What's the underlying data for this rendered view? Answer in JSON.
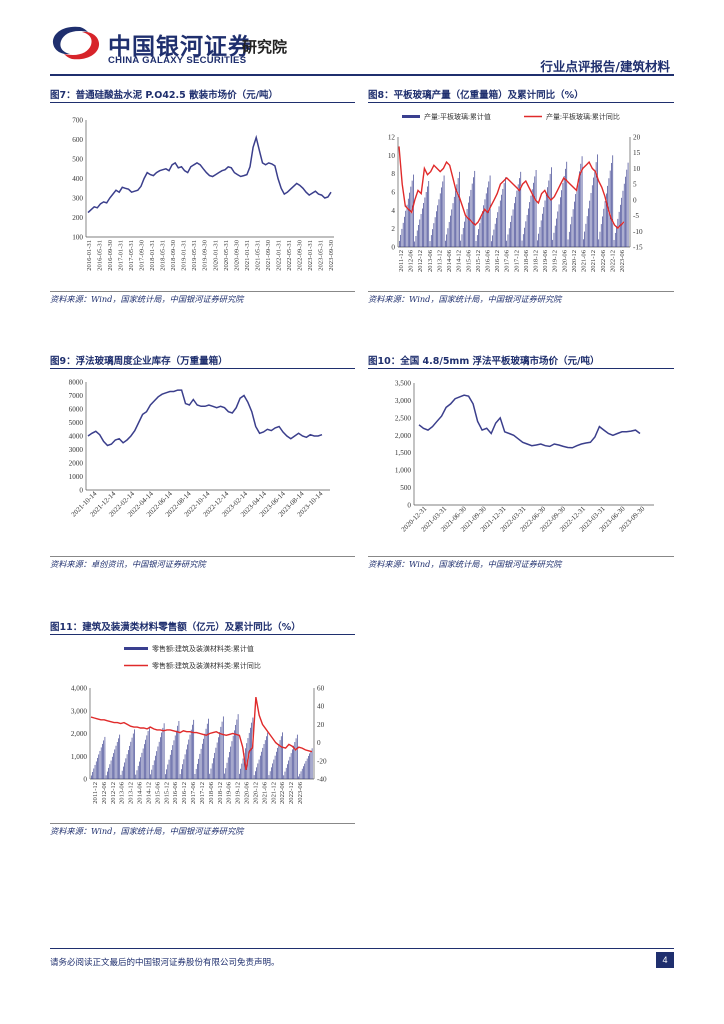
{
  "header": {
    "logo_cn": "中国银河证券",
    "logo_en": "CHINA GALAXY SECURITIES",
    "institute": "研究院",
    "report_type": "行业点评报告/建筑材料"
  },
  "figures": [
    {
      "id": "fig7",
      "title": "图7：普通硅酸盐水泥 P.O42.5 散装市场价（元/吨）",
      "source": "资料来源：Wind，国家统计局，中国银河证券研究院"
    },
    {
      "id": "fig8",
      "title": "图8：平板玻璃产量（亿重量箱）及累计同比（%）",
      "source": "资料来源：Wind，国家统计局，中国银河证券研究院"
    },
    {
      "id": "fig9",
      "title": "图9：浮法玻璃周度企业库存（万重量箱）",
      "source": "资料来源：卓创资讯，中国银河证券研究院"
    },
    {
      "id": "fig10",
      "title": "图10：全国 4.8/5mm 浮法平板玻璃市场价（元/吨）",
      "source": "资料来源：Wind，国家统计局，中国银河证券研究院"
    },
    {
      "id": "fig11",
      "title": "图11：建筑及装潢类材料零售额（亿元）及累计同比（%）",
      "source": "资料来源：Wind，国家统计局，中国银河证券研究院"
    }
  ],
  "footer": {
    "disclaimer": "请务必阅读正文最后的中国银河证券股份有限公司免责声明。",
    "page": "4"
  },
  "colors": {
    "navy": "#1f2f6e",
    "bar": "#3a3f8f",
    "red": "#e02a2a",
    "line": "#3b3f8c"
  },
  "chart_data": [
    {
      "id": "fig7",
      "type": "line",
      "title": "普通硅酸盐水泥 P.O42.5 散装市场价（元/吨）",
      "ylim": [
        100,
        700
      ],
      "yticks": [
        "100",
        "200",
        "300",
        "400",
        "500",
        "600",
        "700"
      ],
      "x_tick_labels": [
        "2016-01-31",
        "2016-05-31",
        "2016-09-30",
        "2017-01-31",
        "2017-05-31",
        "2017-09-30",
        "2018-01-31",
        "2018-05-31",
        "2018-09-30",
        "2019-01-31",
        "2019-05-31",
        "2019-09-30",
        "2020-01-31",
        "2020-05-31",
        "2020-09-30",
        "2021-01-31",
        "2021-05-31",
        "2021-09-30",
        "2022-01-31",
        "2022-05-31",
        "2022-09-30",
        "2023-01-31",
        "2023-05-31",
        "2023-09-30"
      ],
      "series": [
        {
          "name": "P.O42.5 散装价",
          "values": [
            225,
            240,
            255,
            250,
            270,
            280,
            275,
            300,
            320,
            340,
            330,
            355,
            350,
            345,
            330,
            335,
            340,
            360,
            400,
            430,
            420,
            415,
            430,
            440,
            445,
            450,
            440,
            470,
            480,
            455,
            460,
            440,
            430,
            460,
            470,
            480,
            470,
            450,
            430,
            415,
            410,
            420,
            430,
            440,
            445,
            460,
            455,
            430,
            420,
            410,
            415,
            420,
            460,
            560,
            610,
            545,
            480,
            470,
            480,
            475,
            465,
            400,
            350,
            320,
            330,
            345,
            360,
            375,
            365,
            350,
            330,
            315,
            325,
            335,
            320,
            315,
            300,
            305,
            330
          ]
        }
      ]
    },
    {
      "id": "fig8",
      "type": "bar+line",
      "title": "平板玻璃产量（亿重量箱）及累计同比（%）",
      "ylim_left": [
        0,
        12
      ],
      "ylim_right": [
        -15,
        20
      ],
      "yticks_left": [
        "0",
        "2",
        "4",
        "6",
        "8",
        "10",
        "12"
      ],
      "yticks_right": [
        "-15",
        "-10",
        "-5",
        "0",
        "5",
        "10",
        "15",
        "20"
      ],
      "x_tick_labels": [
        "2011-12",
        "2012-06",
        "2012-12",
        "2013-06",
        "2013-12",
        "2014-06",
        "2014-12",
        "2015-06",
        "2015-12",
        "2016-06",
        "2016-12",
        "2017-06",
        "2017-12",
        "2018-06",
        "2018-12",
        "2019-06",
        "2019-12",
        "2020-06",
        "2020-12",
        "2021-06",
        "2021-12",
        "2022-06",
        "2022-12",
        "2023-06"
      ],
      "legend": [
        "产量:平板玻璃:累计值",
        "产量:平板玻璃:累计同比"
      ],
      "bar_year_totals": [
        7.9,
        7.2,
        7.8,
        8.2,
        8.3,
        7.8,
        7.6,
        8.2,
        8.4,
        8.7,
        9.3,
        9.9,
        10.1,
        10.0,
        9.2
      ],
      "series": [
        {
          "name": "产量:平板玻璃:累计同比",
          "values": [
            17,
            5,
            -2,
            -3,
            -4,
            0,
            3,
            2,
            10,
            8,
            9,
            11,
            10,
            9,
            10,
            12,
            11,
            7,
            3,
            1,
            -2,
            -5,
            -6,
            -7,
            -8,
            -7,
            -5,
            -3,
            -4,
            -2,
            0,
            2,
            5,
            6,
            7,
            6,
            5,
            4,
            3,
            5,
            6,
            4,
            2,
            0,
            -1,
            2,
            3,
            1,
            0,
            1,
            3,
            5,
            7,
            6,
            5,
            4,
            3,
            8,
            10,
            11,
            12,
            10,
            9,
            6,
            4,
            1,
            -3,
            -6,
            -8,
            -9,
            -8,
            -7
          ]
        }
      ]
    },
    {
      "id": "fig9",
      "type": "line",
      "title": "浮法玻璃周度企业库存（万重量箱）",
      "ylim": [
        0,
        8000
      ],
      "yticks": [
        "0",
        "1000",
        "2000",
        "3000",
        "4000",
        "5000",
        "6000",
        "7000",
        "8000"
      ],
      "x_tick_labels": [
        "2021-10-14",
        "2021-12-14",
        "2022-02-14",
        "2022-04-14",
        "2022-06-14",
        "2022-08-14",
        "2022-10-14",
        "2022-12-14",
        "2023-02-14",
        "2023-04-14",
        "2023-06-14",
        "2023-08-14",
        "2023-10-14"
      ],
      "series": [
        {
          "name": "浮法玻璃周度企业库存",
          "values": [
            4000,
            4200,
            4350,
            4100,
            3600,
            3300,
            3400,
            3700,
            3800,
            3500,
            3700,
            4000,
            4400,
            5000,
            5600,
            5800,
            6300,
            6600,
            6900,
            7100,
            7200,
            7300,
            7300,
            7400,
            7400,
            6400,
            6300,
            6700,
            6300,
            6200,
            6200,
            6300,
            6200,
            6100,
            6200,
            6100,
            5800,
            5700,
            6100,
            6800,
            7000,
            6500,
            5800,
            4700,
            4200,
            4300,
            4500,
            4400,
            4600,
            4700,
            4300,
            4000,
            3800,
            4000,
            4200,
            4000,
            3900,
            4100,
            4000,
            4000,
            4100
          ]
        }
      ]
    },
    {
      "id": "fig10",
      "type": "line",
      "title": "全国 4.8/5mm 浮法平板玻璃市场价（元/吨）",
      "ylim": [
        0,
        3500
      ],
      "yticks": [
        "0",
        "500",
        "1,000",
        "1,500",
        "2,000",
        "2,500",
        "3,000",
        "3,500"
      ],
      "x_tick_labels": [
        "2020-12-31",
        "2021-03-31",
        "2021-06-30",
        "2021-09-30",
        "2021-12-31",
        "2022-03-31",
        "2022-06-30",
        "2022-09-30",
        "2022-12-31",
        "2023-03-31",
        "2023-06-30",
        "2023-09-30"
      ],
      "series": [
        {
          "name": "浮法平板玻璃市场价",
          "values": [
            2300,
            2200,
            2150,
            2250,
            2400,
            2550,
            2800,
            2900,
            3050,
            3100,
            3150,
            3120,
            2900,
            2400,
            2150,
            2200,
            2050,
            2350,
            2500,
            2100,
            2050,
            2000,
            1900,
            1800,
            1750,
            1700,
            1720,
            1750,
            1700,
            1680,
            1750,
            1720,
            1680,
            1650,
            1640,
            1700,
            1750,
            1780,
            1800,
            1950,
            2250,
            2150,
            2050,
            2000,
            2050,
            2100,
            2100,
            2120,
            2150,
            2050
          ]
        }
      ]
    },
    {
      "id": "fig11",
      "type": "bar+line",
      "title": "建筑及装潢类材料零售额（亿元）及累计同比（%）",
      "ylim_left": [
        0,
        4000
      ],
      "ylim_right": [
        -40,
        60
      ],
      "yticks_left": [
        "0",
        "1,000",
        "2,000",
        "3,000",
        "4,000"
      ],
      "yticks_right": [
        "-40",
        "-20",
        "0",
        "20",
        "40",
        "60"
      ],
      "x_tick_labels": [
        "2011-12",
        "2012-06",
        "2012-12",
        "2013-06",
        "2013-12",
        "2014-06",
        "2014-12",
        "2015-06",
        "2015-12",
        "2016-06",
        "2016-12",
        "2017-06",
        "2017-12",
        "2018-06",
        "2018-12",
        "2019-06",
        "2019-12",
        "2020-06",
        "2020-12",
        "2021-06",
        "2021-12",
        "2022-06",
        "2022-12",
        "2023-06"
      ],
      "legend": [
        "零售额:建筑及装潢材料类:累计值",
        "零售额:建筑及装潢材料类:累计同比"
      ],
      "bar_year_totals": [
        1850,
        1950,
        2180,
        2300,
        2450,
        2550,
        2600,
        2650,
        2750,
        2850,
        2700,
        2050,
        2050,
        1950,
        1350
      ],
      "series": [
        {
          "name": "零售额:建筑及装潢材料类:累计同比",
          "values": [
            28,
            27,
            26,
            25,
            25,
            24,
            23,
            22,
            22,
            21,
            22,
            20,
            18,
            17,
            17,
            16,
            16,
            15,
            17,
            15,
            14,
            14,
            13,
            14,
            14,
            13,
            12,
            11,
            13,
            12,
            12,
            11,
            11,
            10,
            9,
            8,
            10,
            11,
            12,
            10,
            9,
            8,
            9,
            10,
            9,
            8,
            -5,
            -30,
            -10,
            -5,
            50,
            30,
            20,
            15,
            10,
            5,
            0,
            -3,
            -5,
            -6,
            -2,
            -4,
            -8,
            -5,
            -6,
            -8,
            -9,
            -10
          ]
        }
      ]
    }
  ]
}
